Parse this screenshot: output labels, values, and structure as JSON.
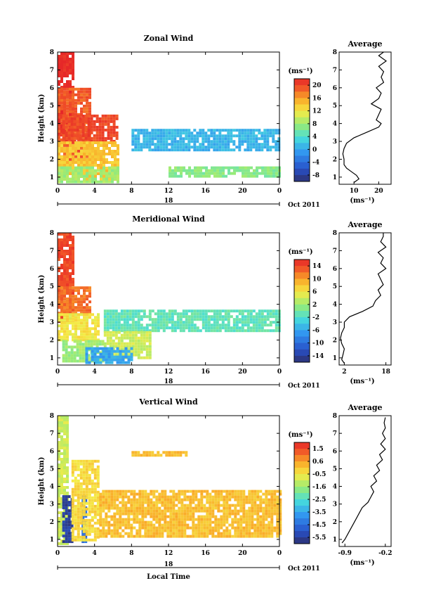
{
  "chart_data": [
    {
      "type": "heatmap",
      "title": "Zonal Wind",
      "ylabel": "Height (km)",
      "date_label": "18",
      "date_suffix": "Oct 2011",
      "x_ticks": [
        "0",
        "4",
        "8",
        "12",
        "16",
        "20",
        "0"
      ],
      "y_ticks": [
        "1",
        "2",
        "3",
        "4",
        "5",
        "6",
        "7",
        "8"
      ],
      "xlim": [
        0,
        24
      ],
      "ylim": [
        0.6,
        8
      ],
      "colorbar": {
        "unit": "(ms⁻¹)",
        "ticks": [
          "20",
          "16",
          "12",
          "8",
          "4",
          "0",
          "-4",
          "-8"
        ],
        "range": [
          -10,
          22
        ]
      },
      "average": {
        "title": "Average",
        "unit": "(ms⁻¹)",
        "x_ticks": [
          "10",
          "20"
        ],
        "xlim": [
          4,
          25
        ],
        "profile_h": [
          0.7,
          0.9,
          1.1,
          1.3,
          1.5,
          1.7,
          2.0,
          2.3,
          2.6,
          2.9,
          3.2,
          3.5,
          3.8,
          4.0,
          4.2,
          4.5,
          4.8,
          5.1,
          5.4,
          5.7,
          6.0,
          6.3,
          6.6,
          6.9,
          7.2,
          7.5,
          7.8,
          8.0
        ],
        "profile_v": [
          10,
          12,
          11,
          9,
          7,
          6,
          6,
          5.5,
          6,
          7,
          10,
          15,
          20,
          21,
          19,
          20,
          21,
          17,
          20,
          21,
          19,
          22,
          21,
          22,
          20,
          23,
          20,
          22
        ]
      },
      "fields": [
        {
          "x": [
            0,
            1.8
          ],
          "y": [
            3.0,
            8.0
          ],
          "value": 22
        },
        {
          "x": [
            0,
            3.5
          ],
          "y": [
            2.0,
            6.0
          ],
          "value": 19
        },
        {
          "x": [
            0.5,
            6.5
          ],
          "y": [
            3.0,
            4.5
          ],
          "value": 20
        },
        {
          "x": [
            0,
            6.5
          ],
          "y": [
            0.9,
            3.0
          ],
          "value": 14
        },
        {
          "x": [
            0,
            6.5
          ],
          "y": [
            0.8,
            1.6
          ],
          "value": 8
        },
        {
          "x": [
            8,
            24
          ],
          "y": [
            2.5,
            3.7
          ],
          "value": 1
        },
        {
          "x": [
            12,
            24
          ],
          "y": [
            1.0,
            1.6
          ],
          "value": 7
        }
      ]
    },
    {
      "type": "heatmap",
      "title": "Meridional Wind",
      "ylabel": "Height (km)",
      "date_label": "18",
      "date_suffix": "Oct 2011",
      "x_ticks": [
        "0",
        "4",
        "8",
        "12",
        "16",
        "20",
        "0"
      ],
      "y_ticks": [
        "1",
        "2",
        "3",
        "4",
        "5",
        "6",
        "7",
        "8"
      ],
      "xlim": [
        0,
        24
      ],
      "ylim": [
        0.6,
        8
      ],
      "colorbar": {
        "unit": "(ms⁻¹)",
        "ticks": [
          "14",
          "10",
          "6",
          "2",
          "-2",
          "-6",
          "-10",
          "-14"
        ],
        "range": [
          -16,
          16
        ]
      },
      "average": {
        "title": "Average",
        "unit": "(ms⁻¹)",
        "x_ticks": [
          "2",
          "18"
        ],
        "xlim": [
          0,
          20
        ],
        "profile_h": [
          0.7,
          0.9,
          1.2,
          1.5,
          1.8,
          2.1,
          2.4,
          2.7,
          3.0,
          3.3,
          3.6,
          3.9,
          4.2,
          4.5,
          4.8,
          5.1,
          5.4,
          5.7,
          6.0,
          6.3,
          6.6,
          6.9,
          7.2,
          7.5,
          7.8,
          8.0
        ],
        "profile_v": [
          2,
          1,
          1.5,
          2,
          1,
          0.5,
          1,
          2,
          2,
          4,
          9,
          13,
          14,
          16,
          15,
          17,
          16,
          15,
          18,
          16,
          17,
          15,
          18,
          16,
          17,
          17
        ]
      },
      "fields": [
        {
          "x": [
            0,
            1.8
          ],
          "y": [
            3.0,
            8.0
          ],
          "value": 14
        },
        {
          "x": [
            0,
            3.5
          ],
          "y": [
            3.5,
            5.0
          ],
          "value": 12
        },
        {
          "x": [
            0,
            4.5
          ],
          "y": [
            2.0,
            3.5
          ],
          "value": 6
        },
        {
          "x": [
            0.5,
            5
          ],
          "y": [
            0.8,
            2.0
          ],
          "value": 2
        },
        {
          "x": [
            5,
            24
          ],
          "y": [
            2.5,
            3.7
          ],
          "value": -1
        },
        {
          "x": [
            5,
            10
          ],
          "y": [
            1.0,
            2.5
          ],
          "value": 4
        },
        {
          "x": [
            3,
            8
          ],
          "y": [
            0.8,
            1.6
          ],
          "value": -6
        }
      ]
    },
    {
      "type": "heatmap",
      "title": "Vertical Wind",
      "ylabel": "Height (km)",
      "xlabel": "Local Time",
      "date_label": "18",
      "date_suffix": "Oct 2011",
      "x_ticks": [
        "0",
        "4",
        "8",
        "12",
        "16",
        "20",
        "0"
      ],
      "y_ticks": [
        "1",
        "2",
        "3",
        "4",
        "5",
        "6",
        "7",
        "8"
      ],
      "xlim": [
        0,
        24
      ],
      "ylim": [
        0.6,
        8
      ],
      "colorbar": {
        "unit": "(ms⁻¹)",
        "ticks": [
          "1.5",
          "0.6",
          "-0.5",
          "-1.6",
          "-2.5",
          "-3.5",
          "-4.5",
          "-5.5"
        ],
        "range": [
          -6,
          2
        ]
      },
      "average": {
        "title": "Average",
        "unit": "(ms⁻¹)",
        "x_ticks": [
          "-0.9",
          "-0.2"
        ],
        "xlim": [
          -1.0,
          -0.1
        ],
        "profile_h": [
          0.8,
          1.0,
          1.3,
          1.6,
          1.9,
          2.2,
          2.5,
          2.8,
          3.1,
          3.4,
          3.7,
          4.0,
          4.3,
          4.6,
          4.9,
          5.2,
          5.5,
          5.8,
          6.1,
          6.4,
          6.7,
          7.0,
          7.3,
          7.6,
          7.9
        ],
        "profile_v": [
          -0.95,
          -0.9,
          -0.85,
          -0.8,
          -0.75,
          -0.7,
          -0.65,
          -0.6,
          -0.5,
          -0.45,
          -0.4,
          -0.45,
          -0.35,
          -0.4,
          -0.3,
          -0.35,
          -0.25,
          -0.3,
          -0.2,
          -0.28,
          -0.2,
          -0.25,
          -0.2,
          -0.22,
          -0.2
        ]
      },
      "fields": [
        {
          "x": [
            0,
            1.0
          ],
          "y": [
            0.8,
            8.0
          ],
          "value": -1.0
        },
        {
          "x": [
            0.5,
            1.5
          ],
          "y": [
            0.8,
            3.5
          ],
          "value": -5.5
        },
        {
          "x": [
            2.6,
            3.0
          ],
          "y": [
            0.8,
            3.5
          ],
          "value": -4.5
        },
        {
          "x": [
            1.5,
            4.5
          ],
          "y": [
            0.9,
            5.5
          ],
          "value": -0.3
        },
        {
          "x": [
            4.5,
            24
          ],
          "y": [
            1.2,
            3.8
          ],
          "value": 0.1
        },
        {
          "x": [
            8,
            14
          ],
          "y": [
            5.8,
            6.0
          ],
          "value": 0.1
        }
      ]
    }
  ]
}
